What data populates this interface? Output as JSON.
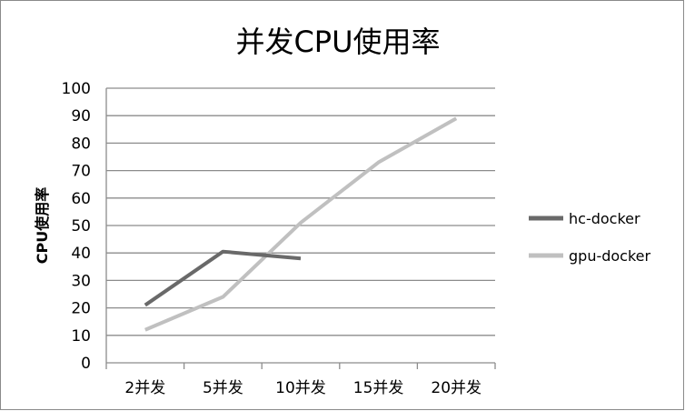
{
  "chart_data": {
    "type": "line",
    "title": "并发CPU使用率",
    "xlabel": "",
    "ylabel": "CPU使用率",
    "categories": [
      "2并发",
      "5并发",
      "10并发",
      "15并发",
      "20并发"
    ],
    "ylim": [
      0,
      100
    ],
    "yticks": [
      0,
      10,
      20,
      30,
      40,
      50,
      60,
      70,
      80,
      90,
      100
    ],
    "grid": true,
    "legend_position": "right",
    "series": [
      {
        "name": "hc-docker",
        "color": "#696969",
        "values": [
          21,
          40.5,
          38,
          null,
          null
        ]
      },
      {
        "name": "gpu-docker",
        "color": "#c0c0c0",
        "values": [
          12,
          24,
          51,
          73,
          89
        ]
      }
    ]
  }
}
